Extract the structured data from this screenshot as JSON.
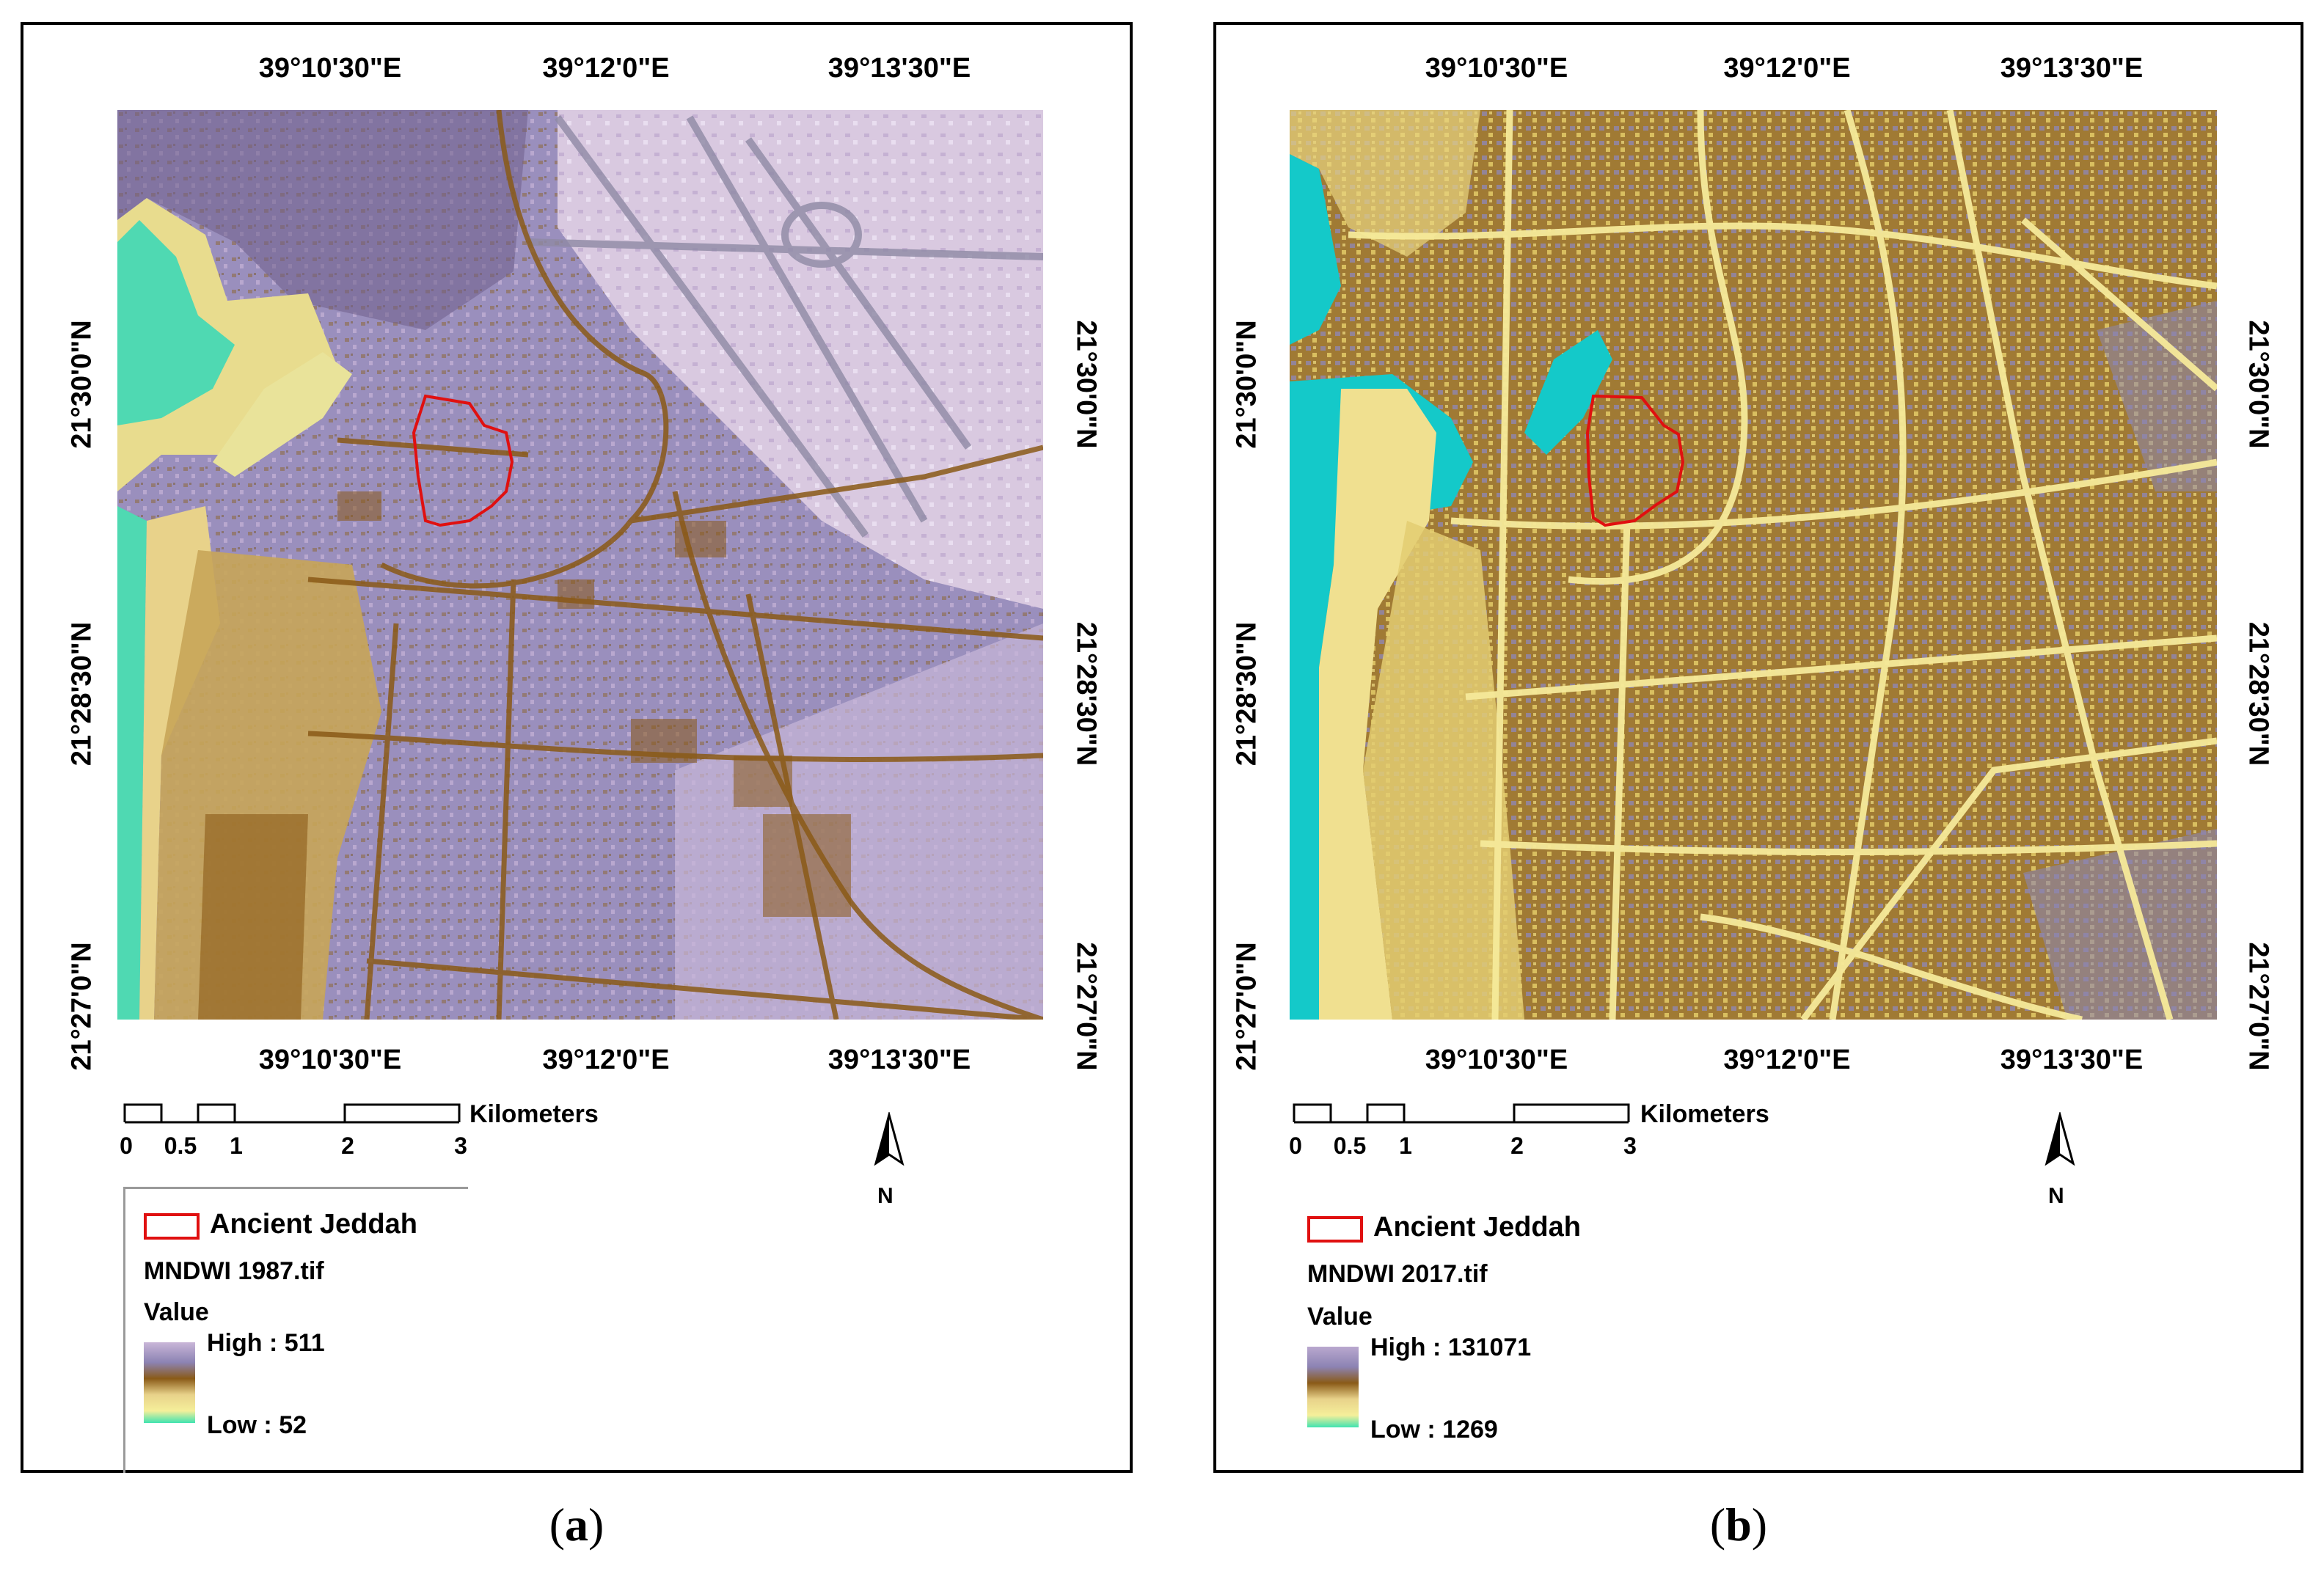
{
  "panels": [
    {
      "id": "a",
      "caption_open": "(",
      "caption_letter": "a",
      "caption_close": ")",
      "lon_labels": [
        "39°10'30\"E",
        "39°12'0\"E",
        "39°13'30\"E"
      ],
      "lat_labels": [
        "21°30'0\"N",
        "21°28'30\"N",
        "21°27'0\"N"
      ],
      "scale": {
        "ticks": [
          "0",
          "0.5",
          "1",
          "2",
          "3"
        ],
        "unit": "Kilometers"
      },
      "north_label": "N",
      "legend": {
        "boundary_label": "Ancient Jeddah",
        "raster_name": "MNDWI 1987.tif",
        "value_label": "Value",
        "high_label": "High : 511",
        "low_label": "Low : 52"
      },
      "colors": {
        "base": "#9a8fbd",
        "urban_light": "#c8b6d6",
        "water": "#4fd9b2",
        "road": "#8a5a17",
        "sand": "#e8d28a"
      }
    },
    {
      "id": "b",
      "caption_open": "(",
      "caption_letter": "b",
      "caption_close": ")",
      "lon_labels": [
        "39°10'30\"E",
        "39°12'0\"E",
        "39°13'30\"E"
      ],
      "lat_labels": [
        "21°30'0\"N",
        "21°28'30\"N",
        "21°27'0\"N"
      ],
      "scale": {
        "ticks": [
          "0",
          "0.5",
          "1",
          "2",
          "3"
        ],
        "unit": "Kilometers"
      },
      "north_label": "N",
      "legend": {
        "boundary_label": "Ancient Jeddah",
        "raster_name": "MNDWI 2017.tif",
        "value_label": "Value",
        "high_label": "High : 131071",
        "low_label": "Low : 1269"
      },
      "colors": {
        "base": "#9b7a36",
        "urban_light": "#f2e28a",
        "water": "#14c9c9",
        "road": "#f6ea9a",
        "sand": "#f0e090"
      }
    }
  ],
  "boundary_color": "#e01010"
}
